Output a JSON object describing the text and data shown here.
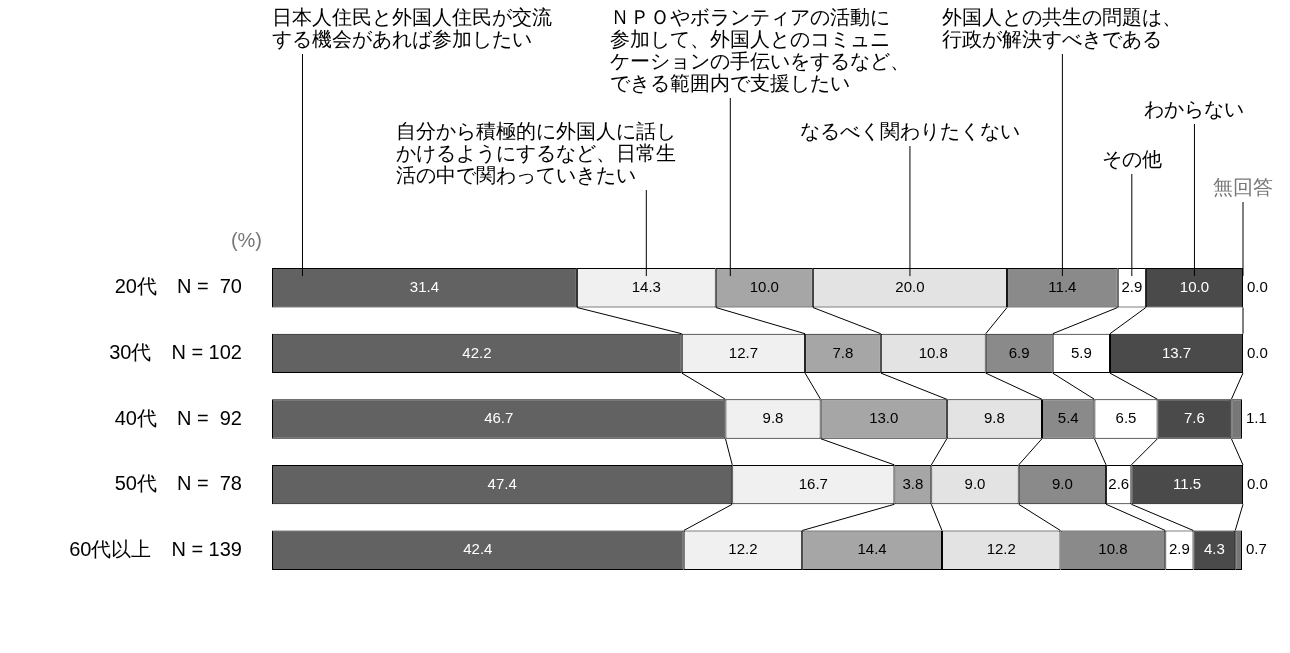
{
  "chart_data": {
    "type": "bar",
    "orientation": "horizontal",
    "stacked": true,
    "tick_labels": "y",
    "xlim": [
      0,
      100
    ],
    "categories": [
      "20代　N =  70",
      "30代　N = 102",
      "40代　N =  92",
      "50代　N =  78",
      "60代以上　N = 139"
    ],
    "annotations": [
      "(%)"
    ],
    "series": [
      {
        "name": "日本人住民と外国人住民が交流する機会があれば参加したい",
        "color": "#626262",
        "values": [
          31.4,
          42.2,
          46.7,
          47.4,
          42.4
        ],
        "value_labels": [
          "31.4",
          "42.2",
          "46.7",
          "47.4",
          "42.4"
        ]
      },
      {
        "name": "自分から積極的に外国人に話しかけるようにするなど、日常生活の中で関わっていきたい",
        "color": "#f0f0f0",
        "values": [
          14.3,
          12.7,
          9.8,
          16.7,
          12.2
        ],
        "value_labels": [
          "14.3",
          "12.7",
          "9.8",
          "16.7",
          "12.2"
        ]
      },
      {
        "name": "ＮＰＯやボランティアの活動に参加して、外国人とのコミュニケーションの手伝いをするなど、できる範囲内で支援したい",
        "color": "#a6a6a6",
        "values": [
          10.0,
          7.8,
          13.0,
          3.8,
          14.4
        ],
        "value_labels": [
          "10.0",
          "7.8",
          "13.0",
          "3.8",
          "14.4"
        ]
      },
      {
        "name": "なるべく関わりたくない",
        "color": "#e3e3e3",
        "values": [
          20.0,
          10.8,
          9.8,
          9.0,
          12.2
        ],
        "value_labels": [
          "20.0",
          "10.8",
          "9.8",
          "9.0",
          "12.2"
        ]
      },
      {
        "name": "外国人との共生の問題は、行政が解決すべきである",
        "color": "#8a8a8a",
        "values": [
          11.4,
          6.9,
          5.4,
          9.0,
          10.8
        ],
        "value_labels": [
          "11.4",
          "6.9",
          "5.4",
          "9.0",
          "10.8"
        ]
      },
      {
        "name": "その他",
        "color": "#ffffff",
        "values": [
          2.9,
          5.9,
          6.5,
          2.6,
          2.9
        ],
        "value_labels": [
          "2.9",
          "5.9",
          "6.5",
          "2.6",
          "2.9"
        ]
      },
      {
        "name": "わからない",
        "color": "#4a4a4a",
        "values": [
          10.0,
          13.7,
          7.6,
          11.5,
          4.3
        ],
        "value_labels": [
          "10.0",
          "13.7",
          "7.6",
          "11.5",
          "4.3"
        ]
      },
      {
        "name": "無回答",
        "color": "#777777",
        "values": [
          0.0,
          0.0,
          1.1,
          0.0,
          0.7
        ],
        "value_labels": [
          "0.0",
          "0.0",
          "1.1",
          "0.0",
          "0.7"
        ]
      }
    ]
  }
}
